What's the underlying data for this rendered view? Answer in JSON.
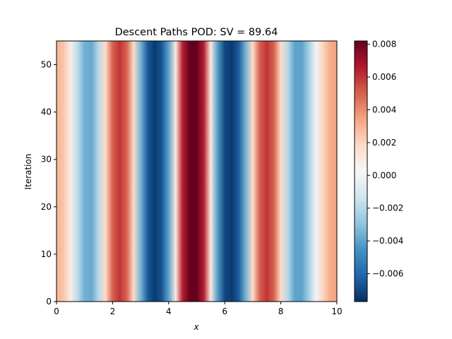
{
  "chart_data": {
    "type": "heatmap",
    "title": "Descent Paths POD: SV = 89.64",
    "xlabel": "x",
    "ylabel": "Iteration",
    "xlim": [
      0,
      10
    ],
    "ylim": [
      0,
      55
    ],
    "xticks": [
      "0",
      "2",
      "4",
      "6",
      "8",
      "10"
    ],
    "yticks": [
      "0",
      "10",
      "20",
      "30",
      "40",
      "50"
    ],
    "field": {
      "description_of_values": "value varies with x only; constant along Iteration",
      "x": [
        0.0,
        0.25,
        0.5,
        0.75,
        1.0,
        1.25,
        1.5,
        1.75,
        2.0,
        2.25,
        2.5,
        2.75,
        3.0,
        3.25,
        3.5,
        3.75,
        4.0,
        4.25,
        4.5,
        4.75,
        5.0,
        5.25,
        5.5,
        5.75,
        6.0,
        6.25,
        6.5,
        6.75,
        7.0,
        7.25,
        7.5,
        7.75,
        8.0,
        8.25,
        8.5,
        8.75,
        9.0,
        9.25,
        9.5,
        9.75,
        10.0
      ],
      "values": [
        0.003,
        0.0025,
        0.0008,
        -0.0018,
        -0.0036,
        -0.0038,
        -0.002,
        0.0018,
        0.005,
        0.006,
        0.005,
        0.0018,
        -0.0035,
        -0.0064,
        -0.0074,
        -0.0066,
        -0.004,
        0.001,
        0.0065,
        0.0082,
        0.0082,
        0.0065,
        0.001,
        -0.0042,
        -0.007,
        -0.0074,
        -0.0064,
        -0.0035,
        0.0018,
        0.005,
        0.006,
        0.005,
        0.0018,
        -0.002,
        -0.004,
        -0.004,
        -0.0024,
        0.0,
        0.002,
        0.0032,
        0.0035
      ]
    },
    "colorbar": {
      "colormap": "RdBu_r",
      "vmin": -0.0077,
      "vmax": 0.0082,
      "ticks": [
        -0.006,
        -0.004,
        -0.002,
        0.0,
        0.002,
        0.004,
        0.006,
        0.008
      ],
      "tick_labels": [
        "−0.006",
        "−0.004",
        "−0.002",
        "0.000",
        "0.002",
        "0.004",
        "0.006",
        "0.008"
      ]
    }
  }
}
